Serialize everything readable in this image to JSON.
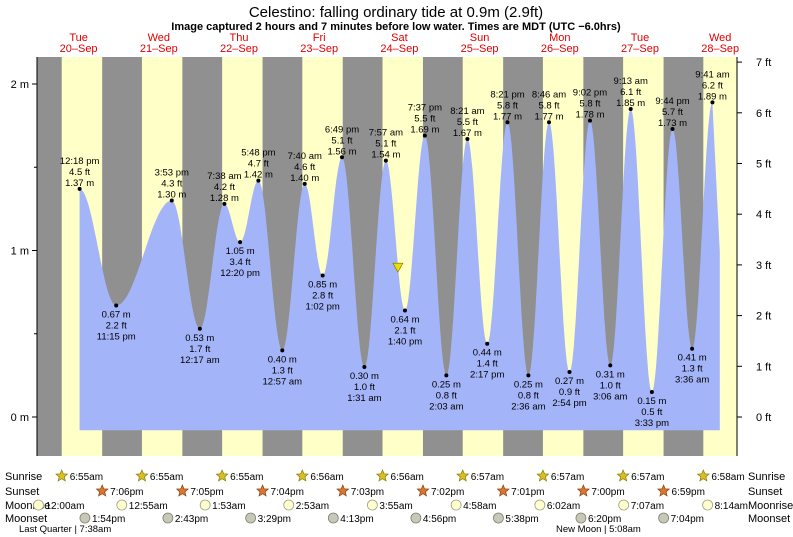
{
  "title": "Celestino: falling  ordinary tide at 0.9m (2.9ft)",
  "subtitle": "Image captured 2 hours and 7 minutes before low water. Times are MDT (UTC −6.0hrs)",
  "colors": {
    "day": "#ffffc8",
    "night": "#909090",
    "tide_fill": "#a4b4f8",
    "day_label": "#e00000",
    "now_marker": "#e8e000"
  },
  "chart_data": {
    "type": "area",
    "title": "Celestino: falling  ordinary tide at 0.9m (2.9ft)",
    "left_axis_ticks": [
      "0 m",
      "1 m",
      "2 m"
    ],
    "right_axis_ticks": [
      "0 ft",
      "1 ft",
      "2 ft",
      "3 ft",
      "4 ft",
      "5 ft",
      "6 ft",
      "7 ft"
    ],
    "ylim_m": [
      -0.26,
      2.15
    ],
    "days": [
      {
        "name": "Tue",
        "date": "20–Sep"
      },
      {
        "name": "Wed",
        "date": "21–Sep"
      },
      {
        "name": "Thu",
        "date": "22–Sep"
      },
      {
        "name": "Fri",
        "date": "23–Sep"
      },
      {
        "name": "Sat",
        "date": "24–Sep"
      },
      {
        "name": "Sun",
        "date": "25–Sep"
      },
      {
        "name": "Mon",
        "date": "26–Sep"
      },
      {
        "name": "Tue",
        "date": "27–Sep"
      },
      {
        "name": "Wed",
        "date": "28–Sep"
      }
    ],
    "extremes": [
      {
        "time": "12:18 pm",
        "ft": "4.5 ft",
        "m": 1.37,
        "m_label": "1.37 m",
        "type": "high",
        "day": 0,
        "hour": 12.3
      },
      {
        "time": "11:15 pm",
        "ft": "2.2 ft",
        "m": 0.67,
        "m_label": "0.67 m",
        "type": "low",
        "day": 0,
        "hour": 23.25
      },
      {
        "time": "3:53 pm",
        "ft": "4.3 ft",
        "m": 1.3,
        "m_label": "1.30 m",
        "type": "high",
        "day": 1,
        "hour": 15.88
      },
      {
        "time": "12:17 am",
        "ft": "1.7 ft",
        "m": 0.53,
        "m_label": "0.53 m",
        "type": "low",
        "day": 2,
        "hour": 0.28
      },
      {
        "time": "7:38 am",
        "ft": "4.2 ft",
        "m": 1.28,
        "m_label": "1.28 m",
        "type": "high",
        "day": 2,
        "hour": 7.63
      },
      {
        "time": "12:20 pm",
        "ft": "3.4 ft",
        "m": 1.05,
        "m_label": "1.05 m",
        "type": "low",
        "day": 2,
        "hour": 12.33
      },
      {
        "time": "5:48 pm",
        "ft": "4.7 ft",
        "m": 1.42,
        "m_label": "1.42 m",
        "type": "high",
        "day": 2,
        "hour": 17.8
      },
      {
        "time": "12:57 am",
        "ft": "1.3 ft",
        "m": 0.4,
        "m_label": "0.40 m",
        "type": "low",
        "day": 3,
        "hour": 0.95
      },
      {
        "time": "7:40 am",
        "ft": "4.6 ft",
        "m": 1.4,
        "m_label": "1.40 m",
        "type": "high",
        "day": 3,
        "hour": 7.67
      },
      {
        "time": "1:02 pm",
        "ft": "2.8 ft",
        "m": 0.85,
        "m_label": "0.85 m",
        "type": "low",
        "day": 3,
        "hour": 13.03
      },
      {
        "time": "6:49 pm",
        "ft": "5.1 ft",
        "m": 1.56,
        "m_label": "1.56 m",
        "type": "high",
        "day": 3,
        "hour": 18.82
      },
      {
        "time": "1:31 am",
        "ft": "1.0 ft",
        "m": 0.3,
        "m_label": "0.30 m",
        "type": "low",
        "day": 4,
        "hour": 1.52
      },
      {
        "time": "7:57 am",
        "ft": "5.1 ft",
        "m": 1.54,
        "m_label": "1.54 m",
        "type": "high",
        "day": 4,
        "hour": 7.95
      },
      {
        "time": "1:40 pm",
        "ft": "2.1 ft",
        "m": 0.64,
        "m_label": "0.64 m",
        "type": "low",
        "day": 4,
        "hour": 13.67
      },
      {
        "time": "7:37 pm",
        "ft": "5.5 ft",
        "m": 1.69,
        "m_label": "1.69 m",
        "type": "high",
        "day": 4,
        "hour": 19.62
      },
      {
        "time": "2:03 am",
        "ft": "0.8 ft",
        "m": 0.25,
        "m_label": "0.25 m",
        "type": "low",
        "day": 5,
        "hour": 2.05
      },
      {
        "time": "8:21 am",
        "ft": "5.5 ft",
        "m": 1.67,
        "m_label": "1.67 m",
        "type": "high",
        "day": 5,
        "hour": 8.35
      },
      {
        "time": "2:17 pm",
        "ft": "1.4 ft",
        "m": 0.44,
        "m_label": "0.44 m",
        "type": "low",
        "day": 5,
        "hour": 14.28
      },
      {
        "time": "8:21 pm",
        "ft": "5.8 ft",
        "m": 1.77,
        "m_label": "1.77 m",
        "type": "high",
        "day": 5,
        "hour": 20.35
      },
      {
        "time": "2:36 am",
        "ft": "0.8 ft",
        "m": 0.25,
        "m_label": "0.25 m",
        "type": "low",
        "day": 6,
        "hour": 2.6
      },
      {
        "time": "8:46 am",
        "ft": "5.8 ft",
        "m": 1.77,
        "m_label": "1.77 m",
        "type": "high",
        "day": 6,
        "hour": 8.77
      },
      {
        "time": "2:54 pm",
        "ft": "0.9 ft",
        "m": 0.27,
        "m_label": "0.27 m",
        "type": "low",
        "day": 6,
        "hour": 14.9
      },
      {
        "time": "9:02 pm",
        "ft": "5.8 ft",
        "m": 1.78,
        "m_label": "1.78 m",
        "type": "high",
        "day": 6,
        "hour": 21.03
      },
      {
        "time": "3:06 am",
        "ft": "1.0 ft",
        "m": 0.31,
        "m_label": "0.31 m",
        "type": "low",
        "day": 7,
        "hour": 3.1
      },
      {
        "time": "9:13 am",
        "ft": "6.1 ft",
        "m": 1.85,
        "m_label": "1.85 m",
        "type": "high",
        "day": 7,
        "hour": 9.22
      },
      {
        "time": "3:33 pm",
        "ft": "0.5 ft",
        "m": 0.15,
        "m_label": "0.15 m",
        "type": "low",
        "day": 7,
        "hour": 15.55
      },
      {
        "time": "9:44 pm",
        "ft": "5.7 ft",
        "m": 1.73,
        "m_label": "1.73 m",
        "type": "high",
        "day": 7,
        "hour": 21.73
      },
      {
        "time": "3:36 am",
        "ft": "1.3 ft",
        "m": 0.41,
        "m_label": "0.41 m",
        "type": "low",
        "day": 8,
        "hour": 3.6
      },
      {
        "time": "9:41 am",
        "ft": "6.2 ft",
        "m": 1.89,
        "m_label": "1.89 m",
        "type": "high",
        "day": 8,
        "hour": 9.68
      }
    ],
    "current": {
      "day": 4,
      "hour": 11.55,
      "m": 0.9
    }
  },
  "sun_moon": {
    "row_labels": {
      "sunrise": "Sunrise",
      "sunset": "Sunset",
      "moonrise": "Moonrise",
      "moonset": "Moonset"
    },
    "sunrise": [
      "6:55am",
      "6:55am",
      "6:55am",
      "6:56am",
      "6:56am",
      "6:57am",
      "6:57am",
      "6:57am",
      "6:58am"
    ],
    "sunset": [
      "7:06pm",
      "7:05pm",
      "7:04pm",
      "7:03pm",
      "7:02pm",
      "7:01pm",
      "7:00pm",
      "6:59pm"
    ],
    "moonrise": [
      {
        "time": "12:00am",
        "day": 0,
        "hour": 0.0
      },
      {
        "time": "12:55am",
        "day": 1,
        "hour": 0.92
      },
      {
        "time": "1:53am",
        "day": 2,
        "hour": 1.88
      },
      {
        "time": "2:53am",
        "day": 3,
        "hour": 2.88
      },
      {
        "time": "3:55am",
        "day": 4,
        "hour": 3.92
      },
      {
        "time": "4:58am",
        "day": 5,
        "hour": 4.97
      },
      {
        "time": "6:02am",
        "day": 6,
        "hour": 6.03
      },
      {
        "time": "7:07am",
        "day": 7,
        "hour": 7.12
      },
      {
        "time": "8:14am",
        "day": 8,
        "hour": 8.23
      }
    ],
    "moonset": [
      {
        "time": "1:54pm",
        "day": 0,
        "hour": 13.9
      },
      {
        "time": "2:43pm",
        "day": 1,
        "hour": 14.72
      },
      {
        "time": "3:29pm",
        "day": 2,
        "hour": 15.48
      },
      {
        "time": "4:13pm",
        "day": 3,
        "hour": 16.22
      },
      {
        "time": "4:56pm",
        "day": 4,
        "hour": 16.93
      },
      {
        "time": "5:38pm",
        "day": 5,
        "hour": 17.63
      },
      {
        "time": "6:20pm",
        "day": 6,
        "hour": 18.33
      },
      {
        "time": "7:04pm",
        "day": 7,
        "hour": 19.07
      }
    ],
    "phases": [
      {
        "text": "Last Quarter | 7:38am"
      },
      {
        "text": "New Moon | 5:08am"
      }
    ]
  }
}
